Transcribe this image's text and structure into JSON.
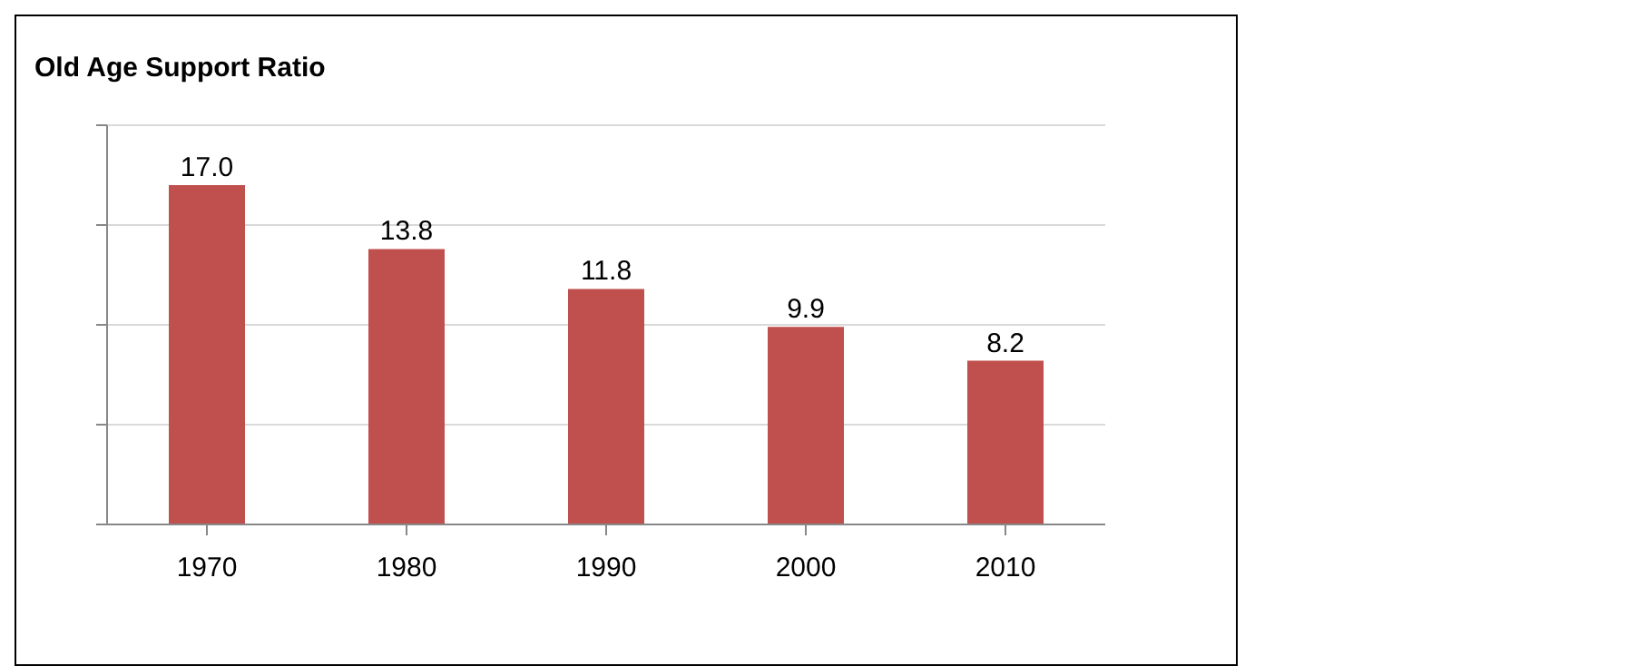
{
  "chart_data": {
    "type": "bar",
    "title": "Old Age Support Ratio",
    "categories": [
      "1970",
      "1980",
      "1990",
      "2000",
      "2010"
    ],
    "values": [
      17.0,
      13.8,
      11.8,
      9.9,
      8.2
    ],
    "color": "#c0504d",
    "value_labels": [
      "17.0",
      "13.8",
      "11.8",
      "9.9",
      "8.2"
    ],
    "ylim": [
      0,
      20
    ],
    "yticks": [
      {
        "value": 0,
        "label": null
      },
      {
        "value": 5,
        "label": null
      },
      {
        "value": 10,
        "label": null
      },
      {
        "value": 15,
        "label": null
      },
      {
        "value": 20,
        "label": null
      }
    ],
    "grid": "y",
    "tick_labels": "x"
  }
}
